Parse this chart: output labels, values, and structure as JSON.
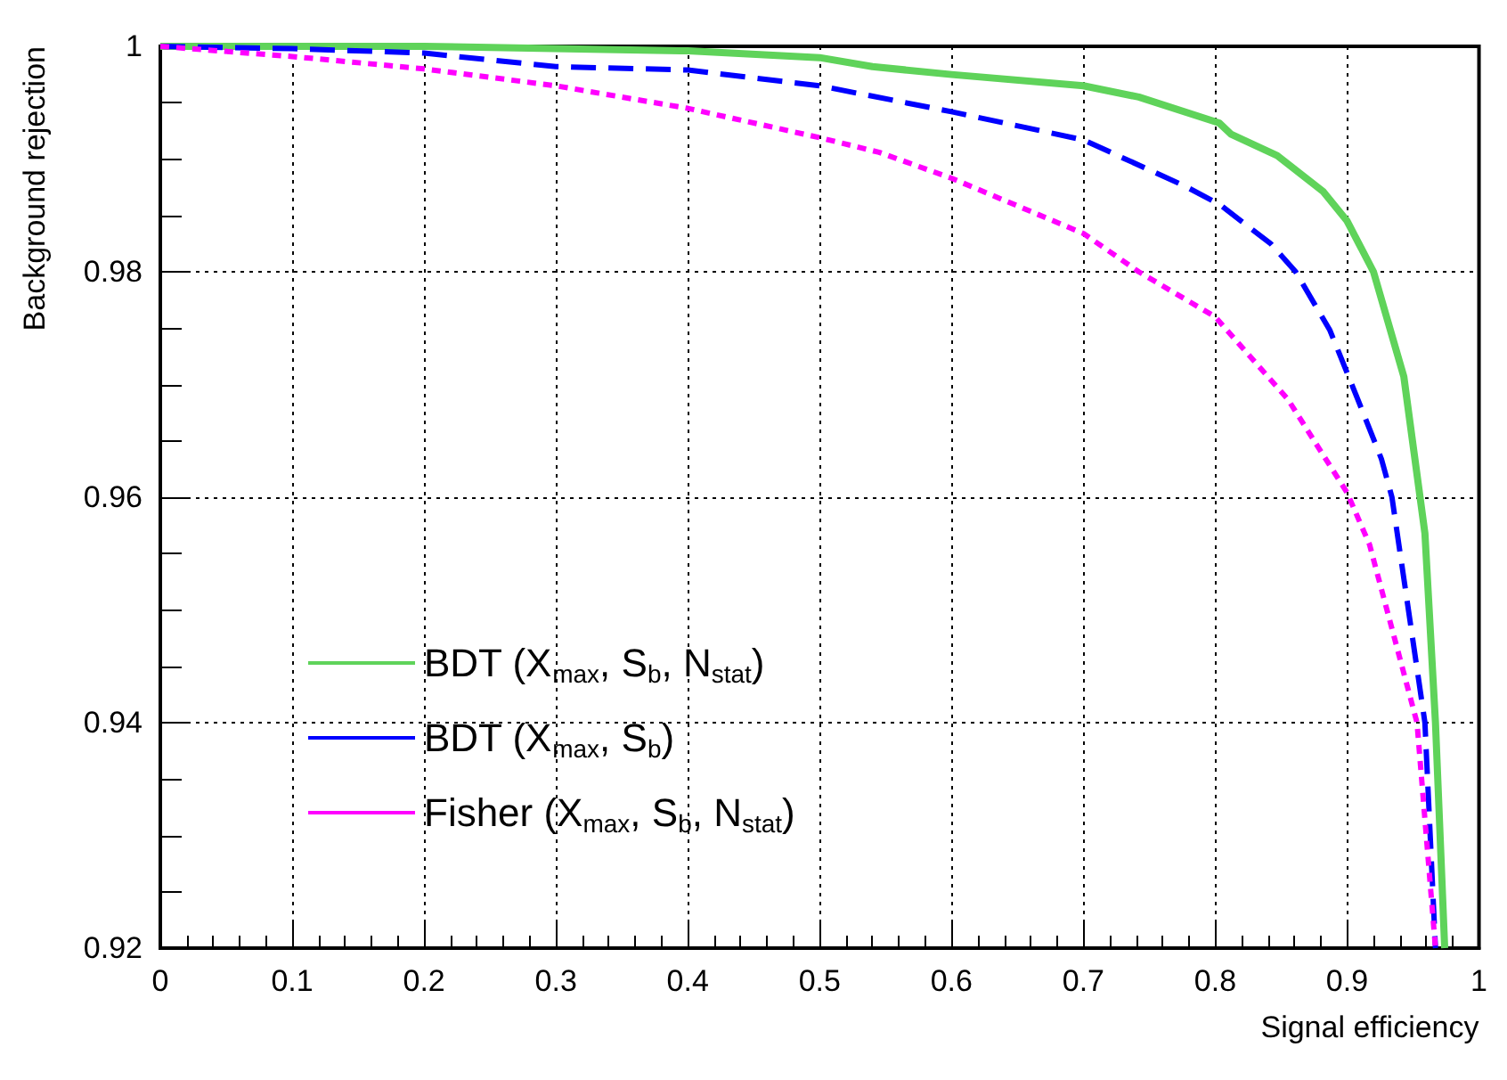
{
  "chart_data": {
    "type": "line",
    "xlabel": "Signal efficiency",
    "ylabel": "Background rejection",
    "xlim": [
      0,
      1
    ],
    "xticks": [
      0,
      0.1,
      0.2,
      0.3,
      0.4,
      0.5,
      0.6,
      0.7,
      0.8,
      0.9,
      1
    ],
    "ylim": [
      0.92,
      1
    ],
    "yticks": [
      0.92,
      0.94,
      0.96,
      0.98,
      1
    ],
    "grid": true,
    "legend": "left",
    "marker": "none",
    "series": [
      {
        "name": "BDT (X$_{max}$, S$_{b}$, N$_{stat}$)",
        "color": "#5fd35a",
        "line_style": "solid",
        "x": [
          0,
          0.2,
          0.4,
          0.5,
          0.54,
          0.6,
          0.7,
          0.742,
          0.803,
          0.812,
          0.847,
          0.882,
          0.9,
          0.92,
          0.943,
          0.959,
          0.967,
          0.974
        ],
        "values": [
          1,
          1,
          0.9996,
          0.999,
          0.9982,
          0.9975,
          0.9965,
          0.9955,
          0.9932,
          0.9922,
          0.9903,
          0.9871,
          0.9845,
          0.98,
          0.9707,
          0.9568,
          0.94,
          0.92
        ]
      },
      {
        "name": "BDT (X$_{max}$, S$_{b}$)",
        "color": "#0000ff",
        "line_style": "dashed",
        "x": [
          0,
          0.1,
          0.2,
          0.3,
          0.4,
          0.5,
          0.6,
          0.7,
          0.777,
          0.803,
          0.842,
          0.861,
          0.887,
          0.908,
          0.926,
          0.934,
          0.959,
          0.967
        ],
        "values": [
          1,
          0.9998,
          0.9994,
          0.9982,
          0.9979,
          0.9965,
          0.9942,
          0.9917,
          0.9876,
          0.986,
          0.9825,
          0.98,
          0.9748,
          0.9687,
          0.9634,
          0.96,
          0.94,
          0.92
        ]
      },
      {
        "name": "Fisher (X$_{max}$, S$_{b}$, N$_{stat}$)",
        "color": "#ff00ff",
        "line_style": "dotted",
        "x": [
          0,
          0.1,
          0.2,
          0.3,
          0.4,
          0.5,
          0.545,
          0.6,
          0.7,
          0.742,
          0.8,
          0.855,
          0.9,
          0.917,
          0.953,
          0.967
        ],
        "values": [
          1,
          0.9991,
          0.998,
          0.9965,
          0.9945,
          0.9919,
          0.9906,
          0.9883,
          0.9834,
          0.98,
          0.976,
          0.9687,
          0.9604,
          0.9558,
          0.94,
          0.92
        ]
      }
    ]
  }
}
